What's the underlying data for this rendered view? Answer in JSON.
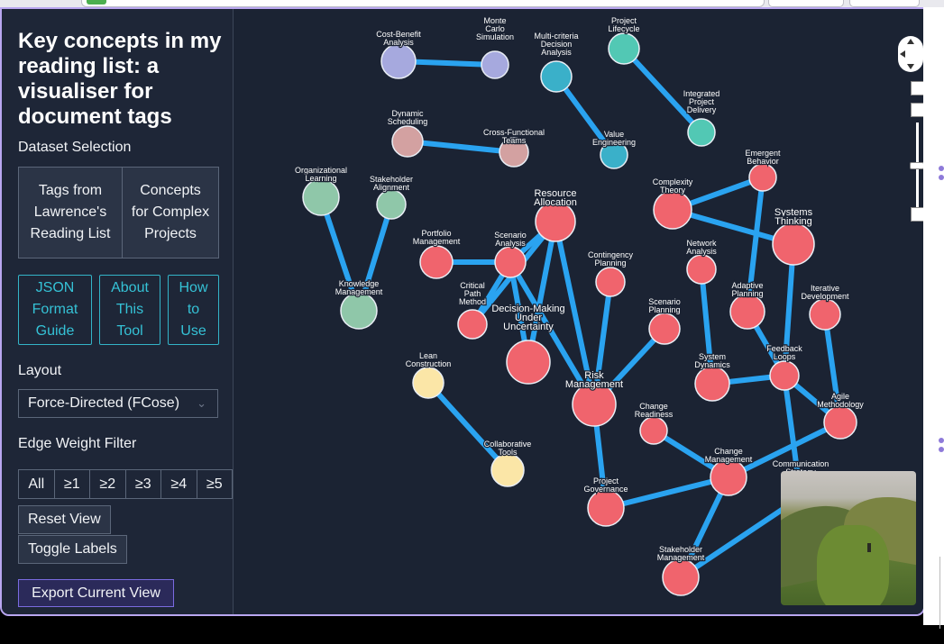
{
  "sidebar": {
    "title": "Key concepts in my reading list: a visualiser for document tags",
    "dataset_label": "Dataset Selection",
    "datasets": [
      "Tags from Lawrence's Reading List",
      "Concepts for Complex Projects"
    ],
    "links": [
      "JSON Format Guide",
      "About This Tool",
      "How to Use"
    ],
    "layout_label": "Layout",
    "layout_value": "Force-Directed (FCose)",
    "edge_filter_label": "Edge Weight Filter",
    "edge_filters": [
      "All",
      "≥1",
      "≥2",
      "≥3",
      "≥4",
      "≥5"
    ],
    "reset_label": "Reset View",
    "toggle_label": "Toggle Labels",
    "export_label": "Export Current View"
  },
  "graph": {
    "colors": {
      "risk": "#f0646d",
      "purple": "#a6a9de",
      "teal": "#3ab0c9",
      "mint": "#52c8b4",
      "pink": "#d3a1a1",
      "green": "#8fc7a9",
      "yellow": "#fbe6a7",
      "edge": "#1f9ae8",
      "edge_light": "#2aa3f0",
      "label": "#ffffff"
    },
    "nodes": [
      {
        "id": "cba",
        "label": [
          "Cost-Benefit",
          "Analysis"
        ],
        "color": "purple"
      },
      {
        "id": "mcs",
        "label": [
          "Monte",
          "Carlo",
          "Simulation"
        ],
        "color": "purple"
      },
      {
        "id": "mcda",
        "label": [
          "Multi-criteria",
          "Decision",
          "Analysis"
        ],
        "color": "teal"
      },
      {
        "id": "pl",
        "label": [
          "Project",
          "Lifecycle"
        ],
        "color": "mint"
      },
      {
        "id": "ipd",
        "label": [
          "Integrated",
          "Project",
          "Delivery"
        ],
        "color": "mint"
      },
      {
        "id": "ve",
        "label": [
          "Value",
          "Engineering"
        ],
        "color": "teal"
      },
      {
        "id": "ds",
        "label": [
          "Dynamic",
          "Scheduling"
        ],
        "color": "pink"
      },
      {
        "id": "cft",
        "label": [
          "Cross-Functional",
          "Teams"
        ],
        "color": "pink"
      },
      {
        "id": "ol",
        "label": [
          "Organizational",
          "Learning"
        ],
        "color": "green"
      },
      {
        "id": "sa",
        "label": [
          "Stakeholder",
          "Alignment"
        ],
        "color": "green"
      },
      {
        "id": "km",
        "label": [
          "Knowledge",
          "Management"
        ],
        "color": "green"
      },
      {
        "id": "ra",
        "label": [
          "Resource",
          "Allocation"
        ],
        "color": "risk"
      },
      {
        "id": "pm",
        "label": [
          "Portfolio",
          "Management"
        ],
        "color": "risk"
      },
      {
        "id": "scen",
        "label": [
          "Scenario",
          "Analysis"
        ],
        "color": "risk"
      },
      {
        "id": "cpm",
        "label": [
          "Critical",
          "Path",
          "Method"
        ],
        "color": "risk"
      },
      {
        "id": "dmu",
        "label": [
          "Decision-Making",
          "Under",
          "Uncertainty"
        ],
        "color": "risk"
      },
      {
        "id": "cp",
        "label": [
          "Contingency",
          "Planning"
        ],
        "color": "risk"
      },
      {
        "id": "ct",
        "label": [
          "Complexity",
          "Theory"
        ],
        "color": "risk"
      },
      {
        "id": "eb",
        "label": [
          "Emergent",
          "Behavior"
        ],
        "color": "risk"
      },
      {
        "id": "st",
        "label": [
          "Systems",
          "Thinking"
        ],
        "color": "risk"
      },
      {
        "id": "na",
        "label": [
          "Network",
          "Analysis"
        ],
        "color": "risk"
      },
      {
        "id": "ap",
        "label": [
          "Adaptive",
          "Planning"
        ],
        "color": "risk"
      },
      {
        "id": "id",
        "label": [
          "Iterative",
          "Development"
        ],
        "color": "risk"
      },
      {
        "id": "sp",
        "label": [
          "Scenario",
          "Planning"
        ],
        "color": "risk"
      },
      {
        "id": "rm",
        "label": [
          "Risk",
          "Management"
        ],
        "color": "risk"
      },
      {
        "id": "sd",
        "label": [
          "System",
          "Dynamics"
        ],
        "color": "risk"
      },
      {
        "id": "fl",
        "label": [
          "Feedback",
          "Loops"
        ],
        "color": "risk"
      },
      {
        "id": "am",
        "label": [
          "Agile",
          "Methodology"
        ],
        "color": "risk"
      },
      {
        "id": "cr",
        "label": [
          "Change",
          "Readiness"
        ],
        "color": "risk"
      },
      {
        "id": "chm",
        "label": [
          "Change",
          "Management"
        ],
        "color": "risk"
      },
      {
        "id": "cs",
        "label": [
          "Communication",
          "Strategy"
        ],
        "color": "risk"
      },
      {
        "id": "pg",
        "label": [
          "Project",
          "Governance"
        ],
        "color": "risk"
      },
      {
        "id": "sm",
        "label": [
          "Stakeholder",
          "Management"
        ],
        "color": "risk"
      },
      {
        "id": "lc",
        "label": [
          "Lean",
          "Construction"
        ],
        "color": "yellow"
      },
      {
        "id": "colt",
        "label": [
          "Collaborative",
          "Tools"
        ],
        "color": "yellow"
      }
    ],
    "edges": [
      [
        "cba",
        "mcs"
      ],
      [
        "mcda",
        "ve"
      ],
      [
        "pl",
        "ipd"
      ],
      [
        "ds",
        "cft"
      ],
      [
        "ol",
        "km"
      ],
      [
        "sa",
        "km"
      ],
      [
        "pm",
        "scen"
      ],
      [
        "scen",
        "ra"
      ],
      [
        "scen",
        "cpm"
      ],
      [
        "scen",
        "dmu"
      ],
      [
        "scen",
        "rm"
      ],
      [
        "ra",
        "dmu"
      ],
      [
        "ra",
        "rm"
      ],
      [
        "ra",
        "cpm"
      ],
      [
        "rm",
        "cp"
      ],
      [
        "rm",
        "sp"
      ],
      [
        "rm",
        "pg"
      ],
      [
        "ct",
        "eb"
      ],
      [
        "ct",
        "st"
      ],
      [
        "eb",
        "ap"
      ],
      [
        "st",
        "fl"
      ],
      [
        "ap",
        "fl"
      ],
      [
        "na",
        "sd"
      ],
      [
        "sd",
        "fl"
      ],
      [
        "fl",
        "am"
      ],
      [
        "fl",
        "cs"
      ],
      [
        "id",
        "am"
      ],
      [
        "am",
        "chm"
      ],
      [
        "cr",
        "chm"
      ],
      [
        "chm",
        "pg"
      ],
      [
        "chm",
        "sm"
      ],
      [
        "sm",
        "cs"
      ],
      [
        "lc",
        "colt"
      ]
    ]
  }
}
